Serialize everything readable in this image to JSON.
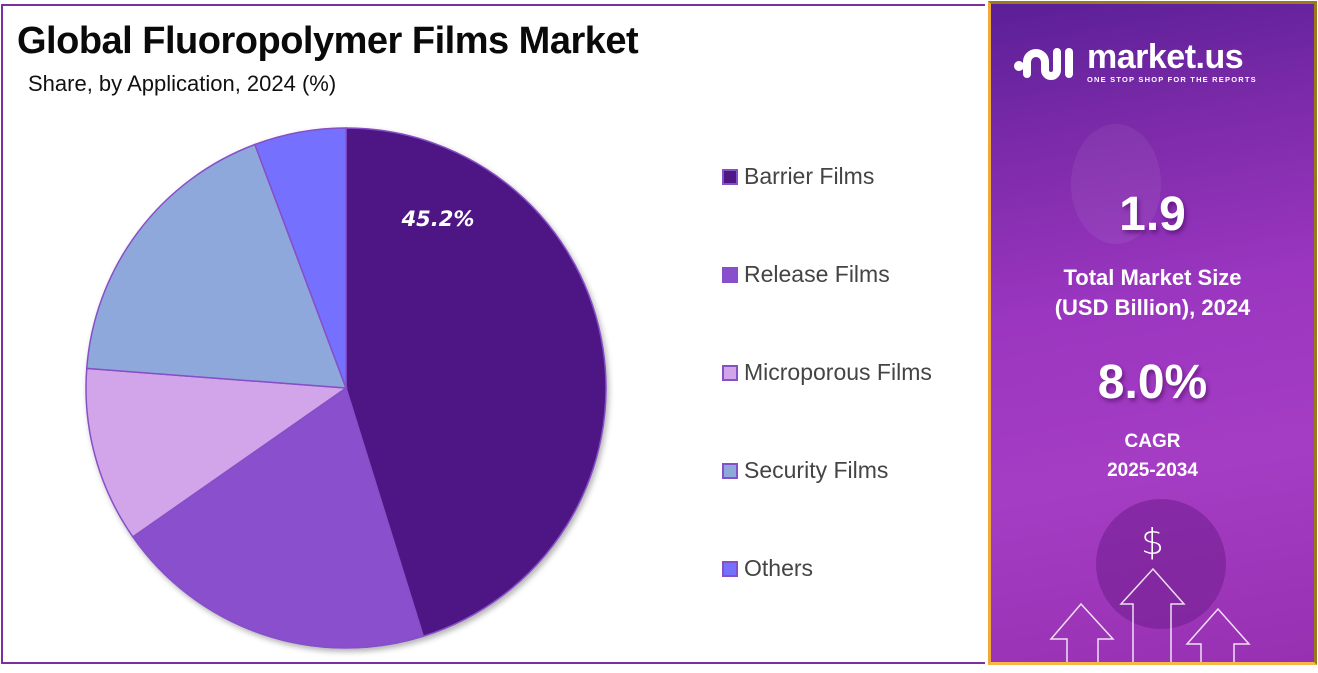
{
  "header": {
    "title": "Global Fluoropolymer Films Market",
    "subtitle": "Share, by Application, 2024 (%)"
  },
  "chart_data": {
    "type": "pie",
    "title": "Global Fluoropolymer Films Market",
    "subtitle": "Share, by Application, 2024 (%)",
    "categories": [
      "Barrier Films",
      "Release Films",
      "Microporous Films",
      "Security Films",
      "Others"
    ],
    "values": [
      45.2,
      20.1,
      10.9,
      18.1,
      5.7
    ],
    "colors": [
      "#4e1784",
      "#8a4fcc",
      "#d2a5ea",
      "#8fa8db",
      "#7570fe"
    ],
    "data_labels": [
      {
        "category": "Barrier Films",
        "text": "45.2%"
      }
    ],
    "start_angle_deg": 0,
    "direction": "clockwise",
    "legend_position": "right"
  },
  "pie": {
    "label": "45.2%"
  },
  "legend": {
    "items": [
      {
        "label": "Barrier Films",
        "color": "#4e1784"
      },
      {
        "label": "Release Films",
        "color": "#8a4fcc"
      },
      {
        "label": "Microporous Films",
        "color": "#d2a5ea"
      },
      {
        "label": "Security Films",
        "color": "#8fa8db"
      },
      {
        "label": "Others",
        "color": "#7570fe"
      }
    ]
  },
  "sidebar": {
    "brand": "market.us",
    "tagline": "ONE STOP SHOP FOR THE REPORTS",
    "market_size_value": "1.9",
    "market_size_label_line1": "Total Market Size",
    "market_size_label_line2": "(USD Billion), 2024",
    "cagr_value": "8.0%",
    "cagr_label_line1": "CAGR",
    "cagr_label_line2": "2025-2034",
    "dollar_symbol": "$",
    "icons": [
      "market-us-logo-icon",
      "dollar-icon",
      "up-arrow-icon"
    ]
  },
  "colors": {
    "frame_left": "#7b2fa0",
    "frame_right": "#f0a83a",
    "sidebar_bg": "#9b36c0"
  }
}
